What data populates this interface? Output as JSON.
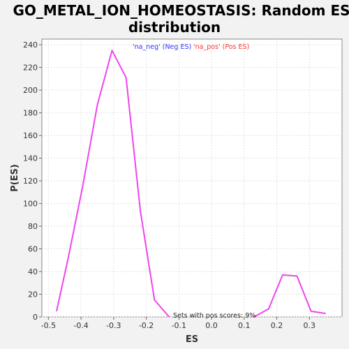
{
  "chart_data": {
    "type": "line",
    "title_line1": "GO_METAL_ION_HOMEOSTASIS: Random ES",
    "title_line2": "distribution",
    "xlabel": "ES",
    "ylabel": "P(ES)",
    "xlim": [
      -0.52,
      0.4
    ],
    "ylim": [
      0,
      245
    ],
    "x_ticks": [
      -0.5,
      -0.4,
      -0.3,
      -0.2,
      -0.1,
      0.0,
      0.1,
      0.2,
      0.3
    ],
    "x_tick_labels": [
      "-0.5",
      "-0.4",
      "-0.3",
      "-0.2",
      "-0.1",
      "0.0",
      "0.1",
      "0.2",
      "0.3"
    ],
    "y_ticks": [
      0,
      20,
      40,
      60,
      80,
      100,
      120,
      140,
      160,
      180,
      200,
      220,
      240
    ],
    "grid": true,
    "legend": [
      {
        "label": "'na_neg' (Neg ES)",
        "color": "#3333ff"
      },
      {
        "label": "'na_pos' (Pos ES)",
        "color": "#ff3333"
      }
    ],
    "annotation": "Sets with pos scores: 9%",
    "series": [
      {
        "color": "#ee44ee",
        "x": [
          -0.475,
          -0.44,
          -0.395,
          -0.35,
          -0.305,
          -0.262,
          -0.218,
          -0.175,
          -0.13
        ],
        "y": [
          5,
          51,
          115,
          187,
          235,
          211,
          93,
          15,
          0
        ]
      },
      {
        "color": "#ee44ee",
        "x": [
          0.13,
          0.175,
          0.218,
          0.262,
          0.305,
          0.35
        ],
        "y": [
          0,
          7,
          37,
          36,
          5,
          3
        ]
      }
    ]
  }
}
